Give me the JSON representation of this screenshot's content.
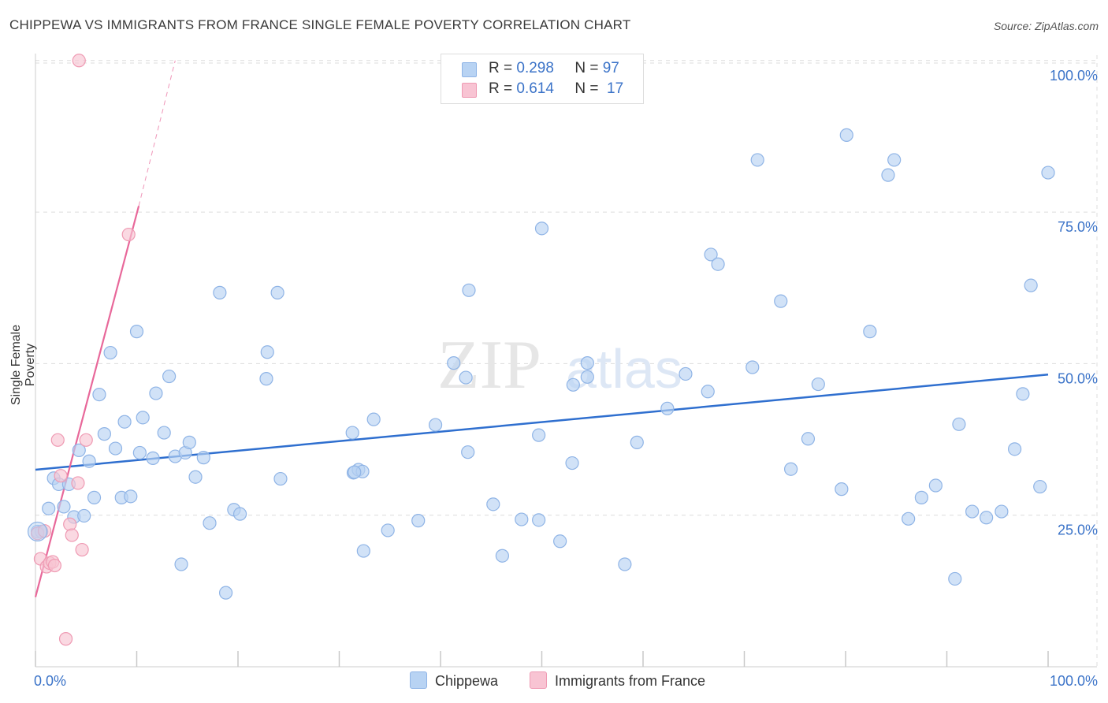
{
  "title": "CHIPPEWA VS IMMIGRANTS FROM FRANCE SINGLE FEMALE POVERTY CORRELATION CHART",
  "source": "Source: ZipAtlas.com",
  "watermark": {
    "zip": "ZIP",
    "atlas": "atlas"
  },
  "legend": [
    {
      "r_label": "R =",
      "r_value": "0.298",
      "n_label": "N =",
      "n_value": "97"
    },
    {
      "r_label": "R =",
      "r_value": "0.614",
      "n_label": "N =",
      "n_value": "17"
    }
  ],
  "colors": {
    "blue_fill": "#b8d3f3",
    "blue_stroke": "#8fb4e6",
    "blue_line": "#2f6fcf",
    "pink_fill": "#f8c4d3",
    "pink_stroke": "#ef9ab3",
    "pink_line": "#e8689a",
    "grid": "#dcdcdc",
    "axis_text": "#3b73c8"
  },
  "chart_data": {
    "type": "scatter",
    "title": "CHIPPEWA VS IMMIGRANTS FROM FRANCE SINGLE FEMALE POVERTY CORRELATION CHART",
    "xlabel": "",
    "ylabel": "Single Female Poverty",
    "xlim": [
      0,
      100
    ],
    "ylim": [
      0,
      104
    ],
    "x_tick_labels": [
      "0.0%",
      "100.0%"
    ],
    "y_ticks": [
      {
        "value": 25,
        "label": "25.0%"
      },
      {
        "value": 50,
        "label": "50.0%"
      },
      {
        "value": 75,
        "label": "75.0%"
      },
      {
        "value": 100,
        "label": "100.0%"
      }
    ],
    "grid": true,
    "legend_position": "bottom",
    "series": [
      {
        "name": "Chippewa",
        "color": "blue",
        "R": 0.298,
        "N": 97,
        "trend": {
          "x": [
            0,
            100
          ],
          "y": [
            32.5,
            48.2
          ]
        },
        "points": [
          [
            0.2,
            22.3
          ],
          [
            0.6,
            22.3
          ],
          [
            1.3,
            26.1
          ],
          [
            1.8,
            31.1
          ],
          [
            2.3,
            30.1
          ],
          [
            2.8,
            26.4
          ],
          [
            3.3,
            30.1
          ],
          [
            3.8,
            24.7
          ],
          [
            4.3,
            35.7
          ],
          [
            4.8,
            24.9
          ],
          [
            5.3,
            33.9
          ],
          [
            5.8,
            27.9
          ],
          [
            6.3,
            44.9
          ],
          [
            6.8,
            38.4
          ],
          [
            7.4,
            51.8
          ],
          [
            7.9,
            36.0
          ],
          [
            8.5,
            27.9
          ],
          [
            8.8,
            40.4
          ],
          [
            9.4,
            28.1
          ],
          [
            10.0,
            55.3
          ],
          [
            10.3,
            35.3
          ],
          [
            10.6,
            41.1
          ],
          [
            11.6,
            34.4
          ],
          [
            11.9,
            45.1
          ],
          [
            12.7,
            38.6
          ],
          [
            13.2,
            47.9
          ],
          [
            13.8,
            34.7
          ],
          [
            14.4,
            16.9
          ],
          [
            14.8,
            35.3
          ],
          [
            15.2,
            37.0
          ],
          [
            15.8,
            31.3
          ],
          [
            16.6,
            34.5
          ],
          [
            17.2,
            23.7
          ],
          [
            18.2,
            61.7
          ],
          [
            18.8,
            12.2
          ],
          [
            19.6,
            25.9
          ],
          [
            20.2,
            25.2
          ],
          [
            22.8,
            47.5
          ],
          [
            22.9,
            51.9
          ],
          [
            23.9,
            61.7
          ],
          [
            24.2,
            31.0
          ],
          [
            31.4,
            32.0
          ],
          [
            31.9,
            32.5
          ],
          [
            32.3,
            32.2
          ],
          [
            31.5,
            32.1
          ],
          [
            31.3,
            38.6
          ],
          [
            32.4,
            19.1
          ],
          [
            33.4,
            40.8
          ],
          [
            34.8,
            22.5
          ],
          [
            37.8,
            24.1
          ],
          [
            39.5,
            39.9
          ],
          [
            41.3,
            50.1
          ],
          [
            42.5,
            47.7
          ],
          [
            42.8,
            62.1
          ],
          [
            42.7,
            35.4
          ],
          [
            45.2,
            26.8
          ],
          [
            46.1,
            18.3
          ],
          [
            48.0,
            24.3
          ],
          [
            49.7,
            38.2
          ],
          [
            49.7,
            24.2
          ],
          [
            50.0,
            72.3
          ],
          [
            51.8,
            20.7
          ],
          [
            53.1,
            46.5
          ],
          [
            53.0,
            33.6
          ],
          [
            54.5,
            50.1
          ],
          [
            54.5,
            47.8
          ],
          [
            58.2,
            16.9
          ],
          [
            59.4,
            37.0
          ],
          [
            62.4,
            42.6
          ],
          [
            64.2,
            48.3
          ],
          [
            66.4,
            45.4
          ],
          [
            66.7,
            68.0
          ],
          [
            67.4,
            66.4
          ],
          [
            70.8,
            49.4
          ],
          [
            71.3,
            83.6
          ],
          [
            73.6,
            60.3
          ],
          [
            74.6,
            32.6
          ],
          [
            76.3,
            37.6
          ],
          [
            77.3,
            46.6
          ],
          [
            79.6,
            29.3
          ],
          [
            80.1,
            87.7
          ],
          [
            82.4,
            55.3
          ],
          [
            84.2,
            81.1
          ],
          [
            84.8,
            83.6
          ],
          [
            86.2,
            24.4
          ],
          [
            87.5,
            27.9
          ],
          [
            88.9,
            29.9
          ],
          [
            90.8,
            14.5
          ],
          [
            91.2,
            40.0
          ],
          [
            92.5,
            25.6
          ],
          [
            93.9,
            24.6
          ],
          [
            95.4,
            25.6
          ],
          [
            96.7,
            35.9
          ],
          [
            97.5,
            45.0
          ],
          [
            98.3,
            62.9
          ],
          [
            99.2,
            29.7
          ],
          [
            100.0,
            81.5
          ]
        ]
      },
      {
        "name": "Immigrants from France",
        "color": "pink",
        "R": 0.614,
        "N": 17,
        "trend": {
          "x": [
            0,
            10.2
          ],
          "y": [
            11.5,
            76.0
          ]
        },
        "trend_dashed_to": {
          "x": 13.8,
          "y": 100
        },
        "points": [
          [
            0.2,
            22.0
          ],
          [
            0.5,
            17.8
          ],
          [
            0.9,
            22.4
          ],
          [
            1.1,
            16.5
          ],
          [
            1.4,
            17.1
          ],
          [
            1.7,
            17.3
          ],
          [
            1.9,
            16.7
          ],
          [
            2.2,
            37.4
          ],
          [
            2.5,
            31.5
          ],
          [
            3.0,
            4.6
          ],
          [
            3.4,
            23.5
          ],
          [
            3.6,
            21.7
          ],
          [
            4.2,
            30.3
          ],
          [
            4.6,
            19.3
          ],
          [
            5.0,
            37.4
          ],
          [
            9.2,
            71.3
          ],
          [
            4.3,
            100.0
          ]
        ]
      }
    ]
  },
  "bottom_legend": [
    "Chippewa",
    "Immigrants from France"
  ]
}
